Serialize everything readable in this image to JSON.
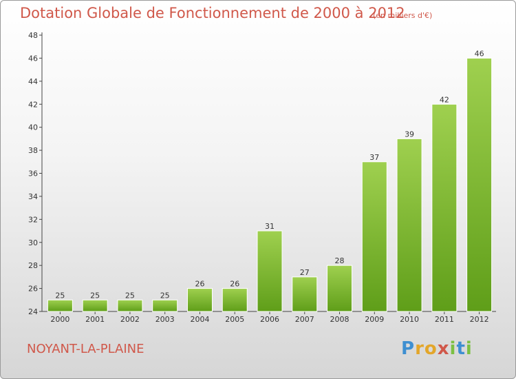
{
  "header": {
    "title": "Dotation Globale de Fonctionnement de 2000 à 2012",
    "subtitle": "(en milliers d'€)"
  },
  "footer": {
    "commune": "NOYANT-LA-PLAINE",
    "logo_text": "Proxiti"
  },
  "colors": {
    "title": "#d0584a",
    "bar_top": "#9fd04f",
    "bar_bottom": "#5f9e19"
  },
  "chart_data": {
    "type": "bar",
    "title": "Dotation Globale de Fonctionnement de 2000 à 2012",
    "subtitle": "(en milliers d'€)",
    "xlabel": "",
    "ylabel": "",
    "categories": [
      "2000",
      "2001",
      "2002",
      "2003",
      "2004",
      "2005",
      "2006",
      "2007",
      "2008",
      "2009",
      "2010",
      "2011",
      "2012"
    ],
    "values": [
      25,
      25,
      25,
      25,
      26,
      26,
      31,
      27,
      28,
      37,
      39,
      42,
      46
    ],
    "ylim": [
      24,
      48
    ],
    "yticks": [
      24,
      26,
      28,
      30,
      32,
      34,
      36,
      38,
      40,
      42,
      44,
      46,
      48
    ],
    "grid": false,
    "data_labels": true
  }
}
